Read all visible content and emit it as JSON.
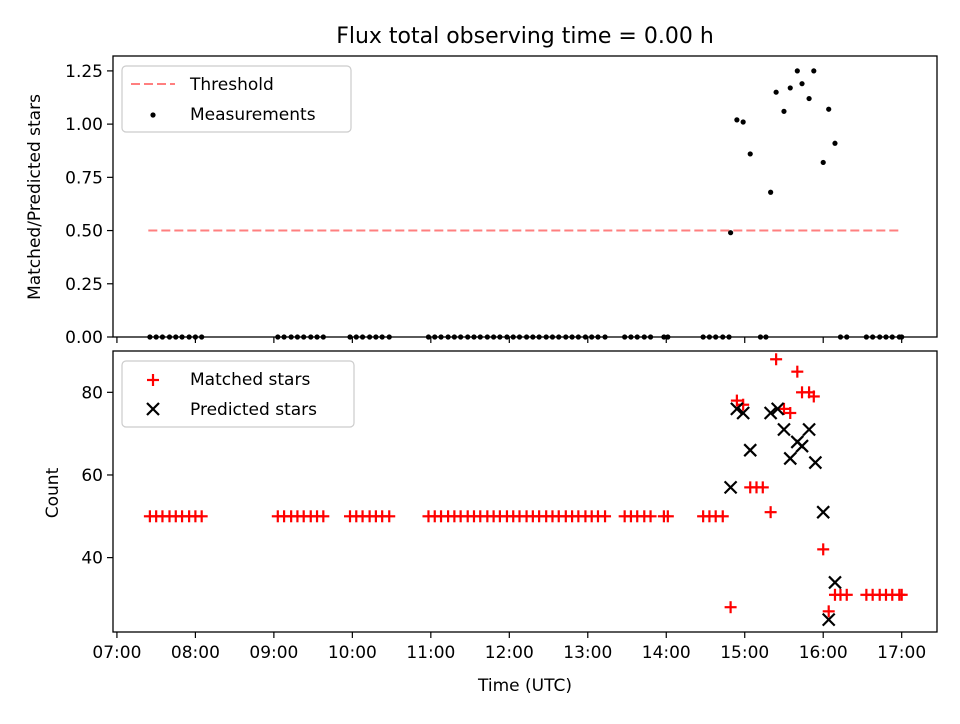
{
  "figure": {
    "title": "Flux total observing time = 0.00 h",
    "xlabel": "Time (UTC)"
  },
  "chart_data": [
    {
      "type": "scatter",
      "panel": "top",
      "title": "Flux total observing time = 0.00 h",
      "ylabel": "Matched/Predicted stars",
      "xlabel": "",
      "xlim": [
        6.95,
        17.45
      ],
      "ylim": [
        0.0,
        1.32
      ],
      "yticks": [
        0.0,
        0.25,
        0.5,
        0.75,
        1.0,
        1.25
      ],
      "ytick_labels": [
        "0.00",
        "0.25",
        "0.50",
        "0.75",
        "1.00",
        "1.25"
      ],
      "xticks": [
        7,
        8,
        9,
        10,
        11,
        12,
        13,
        14,
        15,
        16,
        17
      ],
      "legend": {
        "position": "top-left",
        "entries": [
          "Threshold",
          "Measurements"
        ]
      },
      "threshold": {
        "name": "Threshold",
        "value": 0.5,
        "x_range": [
          7.4,
          17.0
        ],
        "color": "#ff7f7f"
      },
      "series": [
        {
          "name": "Measurements",
          "color": "#000000",
          "marker": "dot",
          "x": [
            7.42,
            7.5,
            7.58,
            7.67,
            7.75,
            7.83,
            7.92,
            8.0,
            8.08,
            9.05,
            9.13,
            9.22,
            9.3,
            9.38,
            9.47,
            9.55,
            9.63,
            9.97,
            10.05,
            10.13,
            10.22,
            10.3,
            10.38,
            10.47,
            10.97,
            11.05,
            11.13,
            11.22,
            11.3,
            11.38,
            11.47,
            11.55,
            11.63,
            11.72,
            11.8,
            11.88,
            11.97,
            12.05,
            12.13,
            12.22,
            12.3,
            12.38,
            12.47,
            12.55,
            12.63,
            12.72,
            12.8,
            12.88,
            12.97,
            13.05,
            13.13,
            13.22,
            13.47,
            13.55,
            13.63,
            13.72,
            13.8,
            13.97,
            14.02,
            14.47,
            14.55,
            14.63,
            14.72,
            14.8,
            14.82,
            14.9,
            14.98,
            15.07,
            15.2,
            15.27,
            15.33,
            15.4,
            15.5,
            15.58,
            15.67,
            15.73,
            15.82,
            15.88,
            16.0,
            16.07,
            16.15,
            16.22,
            16.3,
            16.55,
            16.63,
            16.72,
            16.8,
            16.88,
            16.97,
            17.0
          ],
          "y": [
            0,
            0,
            0,
            0,
            0,
            0,
            0,
            0,
            0,
            0,
            0,
            0,
            0,
            0,
            0,
            0,
            0,
            0,
            0,
            0,
            0,
            0,
            0,
            0,
            0,
            0,
            0,
            0,
            0,
            0,
            0,
            0,
            0,
            0,
            0,
            0,
            0,
            0,
            0,
            0,
            0,
            0,
            0,
            0,
            0,
            0,
            0,
            0,
            0,
            0,
            0,
            0,
            0,
            0,
            0,
            0,
            0,
            0,
            0,
            0,
            0,
            0,
            0,
            0,
            0.49,
            1.02,
            1.01,
            0.86,
            0,
            0,
            0.68,
            1.15,
            1.06,
            1.17,
            1.25,
            1.19,
            1.12,
            1.25,
            0.82,
            1.07,
            0.91,
            0,
            0,
            0,
            0,
            0,
            0,
            0,
            0,
            0
          ]
        }
      ]
    },
    {
      "type": "scatter",
      "panel": "bottom",
      "title": "",
      "ylabel": "Count",
      "xlabel": "Time (UTC)",
      "xlim": [
        6.95,
        17.45
      ],
      "ylim": [
        22,
        90
      ],
      "yticks": [
        40,
        60,
        80
      ],
      "ytick_labels": [
        "40",
        "60",
        "80"
      ],
      "xticks": [
        7,
        8,
        9,
        10,
        11,
        12,
        13,
        14,
        15,
        16,
        17
      ],
      "xtick_labels": [
        "07:00",
        "08:00",
        "09:00",
        "10:00",
        "11:00",
        "12:00",
        "13:00",
        "14:00",
        "15:00",
        "16:00",
        "17:00"
      ],
      "legend": {
        "position": "top-left",
        "entries": [
          "Matched stars",
          "Predicted stars"
        ]
      },
      "series": [
        {
          "name": "Matched stars",
          "color": "#ff0000",
          "marker": "plus",
          "x": [
            7.42,
            7.5,
            7.58,
            7.67,
            7.75,
            7.83,
            7.92,
            8.0,
            8.08,
            9.05,
            9.13,
            9.22,
            9.3,
            9.38,
            9.47,
            9.55,
            9.63,
            9.97,
            10.05,
            10.13,
            10.22,
            10.3,
            10.38,
            10.47,
            10.97,
            11.05,
            11.13,
            11.22,
            11.3,
            11.38,
            11.47,
            11.55,
            11.63,
            11.72,
            11.8,
            11.88,
            11.97,
            12.05,
            12.13,
            12.22,
            12.3,
            12.38,
            12.47,
            12.55,
            12.63,
            12.72,
            12.8,
            12.88,
            12.97,
            13.05,
            13.13,
            13.22,
            13.47,
            13.55,
            13.63,
            13.72,
            13.8,
            13.97,
            14.02,
            14.47,
            14.55,
            14.63,
            14.72,
            14.82,
            14.9,
            14.98,
            15.07,
            15.15,
            15.23,
            15.33,
            15.4,
            15.5,
            15.58,
            15.67,
            15.73,
            15.82,
            15.88,
            16.0,
            16.07,
            16.15,
            16.22,
            16.3,
            16.55,
            16.63,
            16.72,
            16.8,
            16.88,
            16.97,
            17.0
          ],
          "y": [
            50,
            50,
            50,
            50,
            50,
            50,
            50,
            50,
            50,
            50,
            50,
            50,
            50,
            50,
            50,
            50,
            50,
            50,
            50,
            50,
            50,
            50,
            50,
            50,
            50,
            50,
            50,
            50,
            50,
            50,
            50,
            50,
            50,
            50,
            50,
            50,
            50,
            50,
            50,
            50,
            50,
            50,
            50,
            50,
            50,
            50,
            50,
            50,
            50,
            50,
            50,
            50,
            50,
            50,
            50,
            50,
            50,
            50,
            50,
            50,
            50,
            50,
            50,
            28,
            78,
            77,
            57,
            57,
            57,
            51,
            88,
            76,
            75,
            85,
            80,
            80,
            79,
            42,
            27,
            31,
            31,
            31,
            31,
            31,
            31,
            31,
            31,
            31,
            31
          ]
        },
        {
          "name": "Predicted stars",
          "color": "#000000",
          "marker": "x",
          "x": [
            14.82,
            14.9,
            14.98,
            15.07,
            15.33,
            15.42,
            15.5,
            15.58,
            15.67,
            15.73,
            15.82,
            15.9,
            16.0,
            16.07,
            16.15
          ],
          "y": [
            57,
            76,
            75,
            66,
            75,
            76,
            71,
            64,
            68,
            67,
            71,
            63,
            51,
            25,
            34
          ]
        }
      ]
    }
  ]
}
